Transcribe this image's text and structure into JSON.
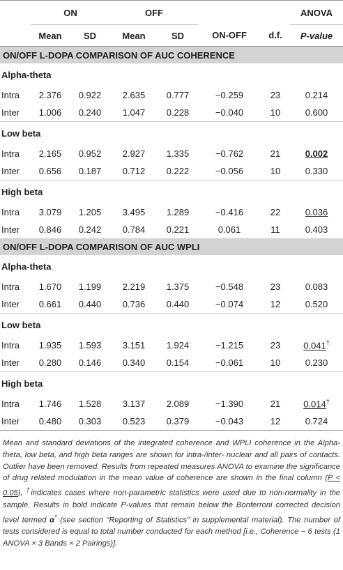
{
  "header": {
    "groups": [
      {
        "text": "ON",
        "span": 2
      },
      {
        "text": "OFF",
        "span": 2
      },
      {
        "text": "ANOVA",
        "span": 1
      }
    ],
    "columns": [
      "Mean",
      "SD",
      "Mean",
      "SD",
      "ON-OFF",
      "d.f.",
      "P-value"
    ]
  },
  "sections": [
    {
      "title": "ON/OFF L-DOPA COMPARISON OF AUC COHERENCE",
      "blocks": [
        {
          "title": "Alpha-theta",
          "rows": [
            [
              "Intra",
              "2.376",
              "0.922",
              "2.635",
              "0.777",
              "−0.259",
              "23",
              "0.214"
            ],
            [
              "Inter",
              "1.006",
              "0.240",
              "1.047",
              "0.228",
              "−0.040",
              "10",
              "0.600"
            ]
          ]
        },
        {
          "title": "Low beta",
          "rows": [
            [
              "Intra",
              "2.165",
              "0.952",
              "2.927",
              "1.335",
              "−0.762",
              "21",
              {
                "text": "0.002",
                "bold": true,
                "underline": true
              }
            ],
            [
              "Inter",
              "0.656",
              "0.187",
              "0.712",
              "0.222",
              "−0.056",
              "10",
              "0.330"
            ]
          ]
        },
        {
          "title": "High beta",
          "rows": [
            [
              "Intra",
              "3.079",
              "1.205",
              "3.495",
              "1.289",
              "−0.416",
              "22",
              {
                "text": "0.036",
                "underline": true
              }
            ],
            [
              "Inter",
              "0.846",
              "0.242",
              "0.784",
              "0.221",
              "0.061",
              "11",
              "0.403"
            ]
          ]
        }
      ]
    },
    {
      "title": "ON/OFF L-DOPA COMPARISON OF AUC WPLI",
      "blocks": [
        {
          "title": "Alpha-theta",
          "rows": [
            [
              "Intra",
              "1.670",
              "1.199",
              "2.219",
              "1.375",
              "−0.548",
              "23",
              "0.083"
            ],
            [
              "Inter",
              "0.661",
              "0.440",
              "0.736",
              "0.440",
              "−0.074",
              "12",
              "0.520"
            ]
          ]
        },
        {
          "title": "Low beta",
          "rows": [
            [
              "Intra",
              "1.935",
              "1.593",
              "3.151",
              "1.924",
              "−1.215",
              "23",
              {
                "text": "0.041",
                "underline": true,
                "note": "†"
              }
            ],
            [
              "Inter",
              "0.280",
              "0.146",
              "0.340",
              "0.154",
              "−0.061",
              "10",
              "0.230"
            ]
          ]
        },
        {
          "title": "High beta",
          "rows": [
            [
              "Intra",
              "1.746",
              "1.528",
              "3.137",
              "2.089",
              "−1.390",
              "21",
              {
                "text": "0.014",
                "underline": true,
                "note": "†"
              }
            ],
            [
              "Inter",
              "0.480",
              "0.303",
              "0.523",
              "0.379",
              "−0.043",
              "12",
              "0.724"
            ]
          ]
        }
      ]
    }
  ],
  "footnote": [
    {
      "text": "Mean and standard deviations of the integrated coherence and WPLI coherence in the Alpha-theta, low beta, and high beta ranges are shown for intra-/inter- nuclear and all pairs of contacts. Outlier have been removed. Results from repeated measures ANOVA to examine the significance of drug related modulation in the mean value of coherence are shown in the final column ("
    },
    {
      "text": "P < 0.05",
      "underline": true
    },
    {
      "text": "), "
    },
    {
      "text": "†",
      "sup": true
    },
    {
      "text": "indicates cases where non-parametric statistics were used due to non-normality in the sample. Results in bold indicate P-values that remain below the Bonferroni corrected decision level termed "
    },
    {
      "text": "α",
      "bold": true
    },
    {
      "text": "*",
      "sup": true
    },
    {
      "text": " (see section “Reporting of Statistics” in supplemental material). The number of tests considered is equal to total number conducted for each method [i.e., Coherence − 6 tests (1 ANOVA × 3 Bands × 2 Pairings)]."
    }
  ]
}
